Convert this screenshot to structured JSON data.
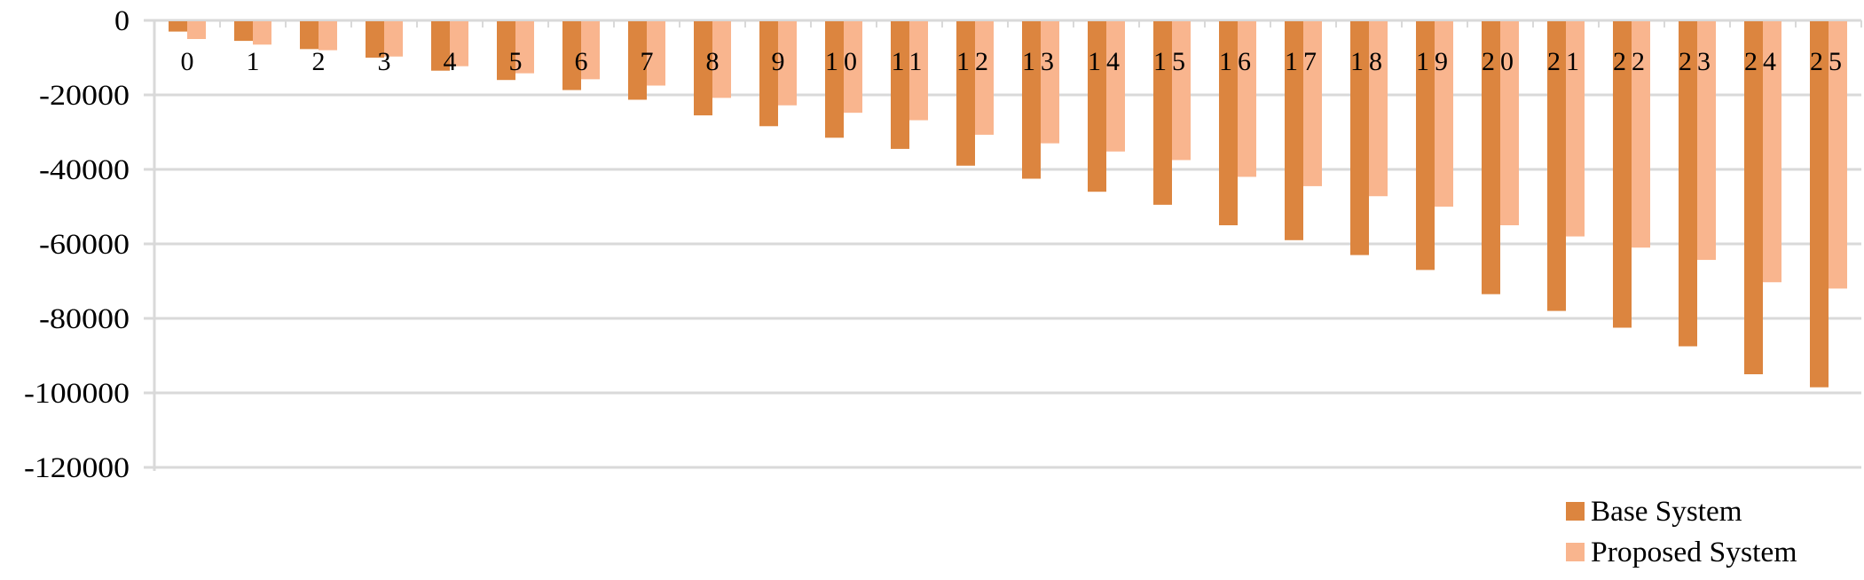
{
  "chart_data": {
    "type": "bar",
    "title": "",
    "xlabel": "",
    "ylabel": "",
    "ylim": [
      -120000,
      0
    ],
    "yticks": [
      0,
      -20000,
      -40000,
      -60000,
      -80000,
      -100000,
      -120000
    ],
    "grid": true,
    "legend_position": "bottom-right",
    "categories": [
      "0",
      "1",
      "2",
      "3",
      "4",
      "5",
      "6",
      "7",
      "8",
      "9",
      "10",
      "11",
      "12",
      "13",
      "14",
      "15",
      "16",
      "17",
      "18",
      "19",
      "20",
      "21",
      "22",
      "23",
      "24",
      "25"
    ],
    "series": [
      {
        "name": "Base System",
        "color": "#dc853f",
        "values": [
          -3000,
          -5500,
          -7700,
          -10000,
          -13500,
          -16000,
          -18700,
          -21300,
          -25500,
          -28400,
          -31500,
          -34500,
          -39000,
          -42500,
          -46000,
          -49500,
          -55000,
          -59000,
          -63000,
          -67000,
          -73500,
          -78000,
          -82500,
          -87500,
          -95000,
          -98500
        ]
      },
      {
        "name": "Proposed System",
        "color": "#f9b58e",
        "values": [
          -5000,
          -6500,
          -8000,
          -9700,
          -12300,
          -14200,
          -15800,
          -17500,
          -20800,
          -22800,
          -24800,
          -26800,
          -30700,
          -33000,
          -35200,
          -37500,
          -42000,
          -44500,
          -47200,
          -50000,
          -55000,
          -58000,
          -61000,
          -64300,
          -70300,
          -72000
        ]
      }
    ]
  }
}
